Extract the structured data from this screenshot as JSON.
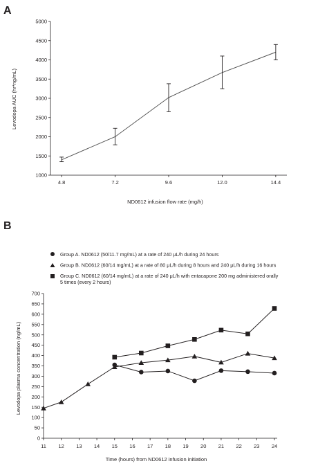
{
  "chart_data": [
    {
      "panel": "A",
      "type": "line",
      "xlabel": "ND0612 infusion flow rate (mg/h)",
      "ylabel": "Levodopa AUC (hr*ng/mL)",
      "x": [
        4.8,
        7.2,
        9.6,
        12.0,
        14.4
      ],
      "x_tick_labels": [
        "4.8",
        "7.2",
        "9.6",
        "12.0",
        "14.4"
      ],
      "ylim": [
        1000,
        5000
      ],
      "y_ticks": [
        1000,
        1500,
        2000,
        2500,
        3000,
        3500,
        4000,
        4500,
        5000
      ],
      "grid": false,
      "series": [
        {
          "values": [
            1400,
            2000,
            3020,
            3670,
            4200
          ],
          "error_low": [
            1350,
            1790,
            2650,
            3250,
            4000
          ],
          "error_high": [
            1470,
            2220,
            3380,
            4100,
            4400
          ],
          "color": "#555555"
        }
      ]
    },
    {
      "panel": "B",
      "type": "line",
      "xlabel": "Time (hours) from ND0612 infusion initiation",
      "ylabel": "Levodopa plasma concentration (ng/mL)",
      "xlim": [
        11,
        24
      ],
      "x_ticks": [
        11,
        12,
        13,
        14,
        15,
        16,
        17,
        18,
        19,
        20,
        21,
        22,
        23,
        24
      ],
      "ylim": [
        0,
        700
      ],
      "y_ticks": [
        0,
        50,
        100,
        150,
        200,
        250,
        300,
        350,
        400,
        450,
        500,
        550,
        600,
        650,
        700
      ],
      "grid": false,
      "legend_position": "top",
      "shared": {
        "x": [
          11,
          12,
          13.5,
          15
        ],
        "values": [
          145,
          175,
          262,
          345
        ],
        "marker": "triangle"
      },
      "series": [
        {
          "name": "Group A. ND0612 (50/11.7 mg/mL) at a rate of 240 μL/h during 24 hours",
          "marker": "circle",
          "x": [
            15,
            16.5,
            18,
            19.5,
            21,
            22.5,
            24
          ],
          "values": [
            355,
            320,
            325,
            278,
            327,
            322,
            315
          ]
        },
        {
          "name": "Group B. ND0612 (60/14 mg/mL) at a rate of 80 μL/h during 8 hours and 240 μL/h during 16 hours",
          "marker": "triangle",
          "x": [
            15,
            16.5,
            18,
            19.5,
            21,
            22.5,
            24
          ],
          "values": [
            345,
            365,
            378,
            396,
            367,
            410,
            388
          ]
        },
        {
          "name": "Group C. ND0612 (60/14 mg/mL) at a rate of 240 μL/h with entacapone 200 mg administered orally 5 times (every 2 hours)",
          "marker": "square",
          "x": [
            15,
            16.5,
            18,
            19.5,
            21,
            22.5,
            24
          ],
          "values": [
            392,
            412,
            447,
            478,
            523,
            505,
            628
          ]
        }
      ]
    }
  ],
  "panel_labels": [
    "A",
    "B"
  ]
}
